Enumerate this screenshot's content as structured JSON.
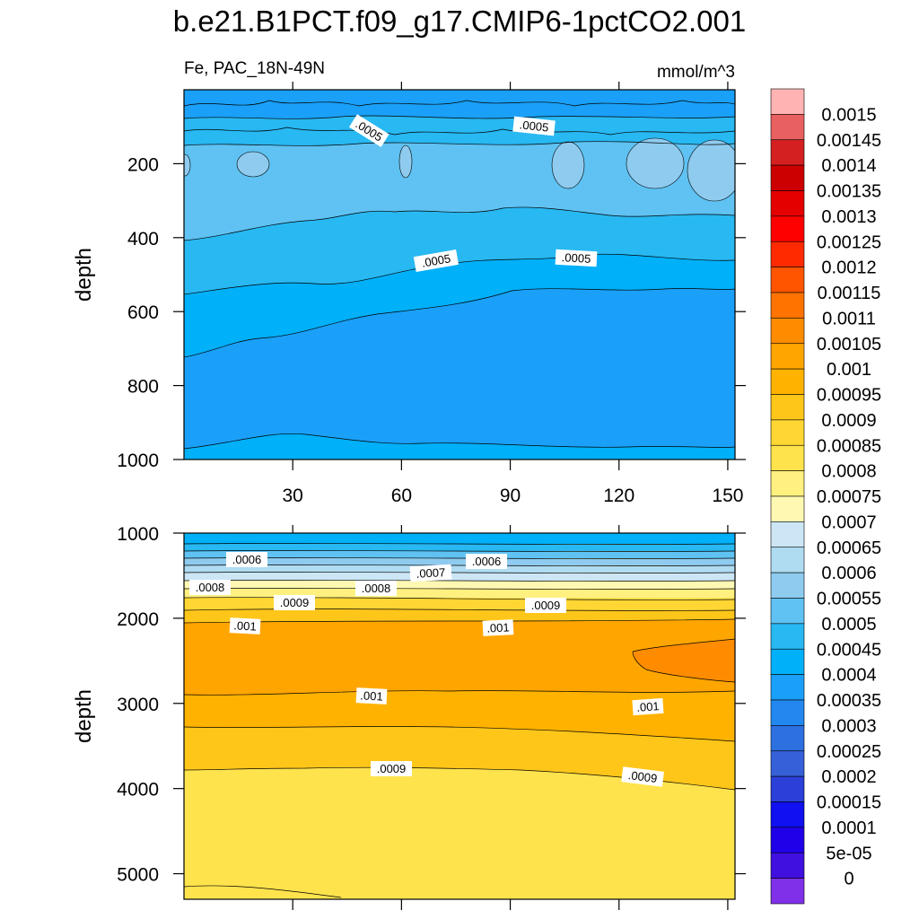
{
  "chart_data": {
    "type": "heatmap",
    "title": "b.e21.B1PCT.f09_g17.CMIP6-1pctCO2.001",
    "left_subtitle": "Fe, PAC_18N-49N",
    "right_subtitle": "mmol/m^3",
    "ylabel": "depth",
    "xlim": [
      0,
      152
    ],
    "xticks": [
      30,
      60,
      90,
      120,
      150
    ],
    "panels": [
      {
        "name": "upper",
        "ylim": [
          1000,
          0
        ],
        "yticks": [
          200,
          400,
          600,
          800,
          1000
        ],
        "show_xtick_labels": true,
        "contour_labels": [
          ".0005",
          ".0005",
          ".0005",
          ".0005"
        ]
      },
      {
        "name": "lower",
        "ylim": [
          5300,
          1000
        ],
        "yticks": [
          1000,
          2000,
          3000,
          4000,
          5000
        ],
        "show_xtick_labels": false,
        "contour_labels": [
          ".0006",
          ".0006",
          ".0007",
          ".0008",
          ".0008",
          ".0009",
          ".0009",
          ".001",
          ".001",
          ".001",
          ".001",
          ".0009",
          ".0009"
        ]
      }
    ],
    "colorbar": {
      "labels": [
        "0.0015",
        "0.00145",
        "0.0014",
        "0.00135",
        "0.0013",
        "0.00125",
        "0.0012",
        "0.00115",
        "0.0011",
        "0.00105",
        "0.001",
        "0.00095",
        "0.0009",
        "0.00085",
        "0.0008",
        "0.00075",
        "0.0007",
        "0.00065",
        "0.0006",
        "0.00055",
        "0.0005",
        "0.00045",
        "0.0004",
        "0.00035",
        "0.0003",
        "0.00025",
        "0.0002",
        "0.00015",
        "0.0001",
        "5e-05",
        "0"
      ],
      "colors_top_to_bottom": [
        "#ffb3b3",
        "#e86060",
        "#d42020",
        "#cc0000",
        "#e50000",
        "#ff0000",
        "#ff2a00",
        "#ff5500",
        "#ff7300",
        "#ff8c00",
        "#ffa500",
        "#ffb300",
        "#ffc61a",
        "#ffd633",
        "#ffe34d",
        "#fff080",
        "#fff8b3",
        "#cce6f5",
        "#b0dcf2",
        "#8fcbef",
        "#5fc2f2",
        "#28b8f2",
        "#00b0f8",
        "#1aa0f8",
        "#2288f0",
        "#2d70e0",
        "#3560d8",
        "#2a40d8",
        "#1010f0",
        "#2000e8",
        "#4010e0",
        "#8030e8"
      ]
    }
  }
}
